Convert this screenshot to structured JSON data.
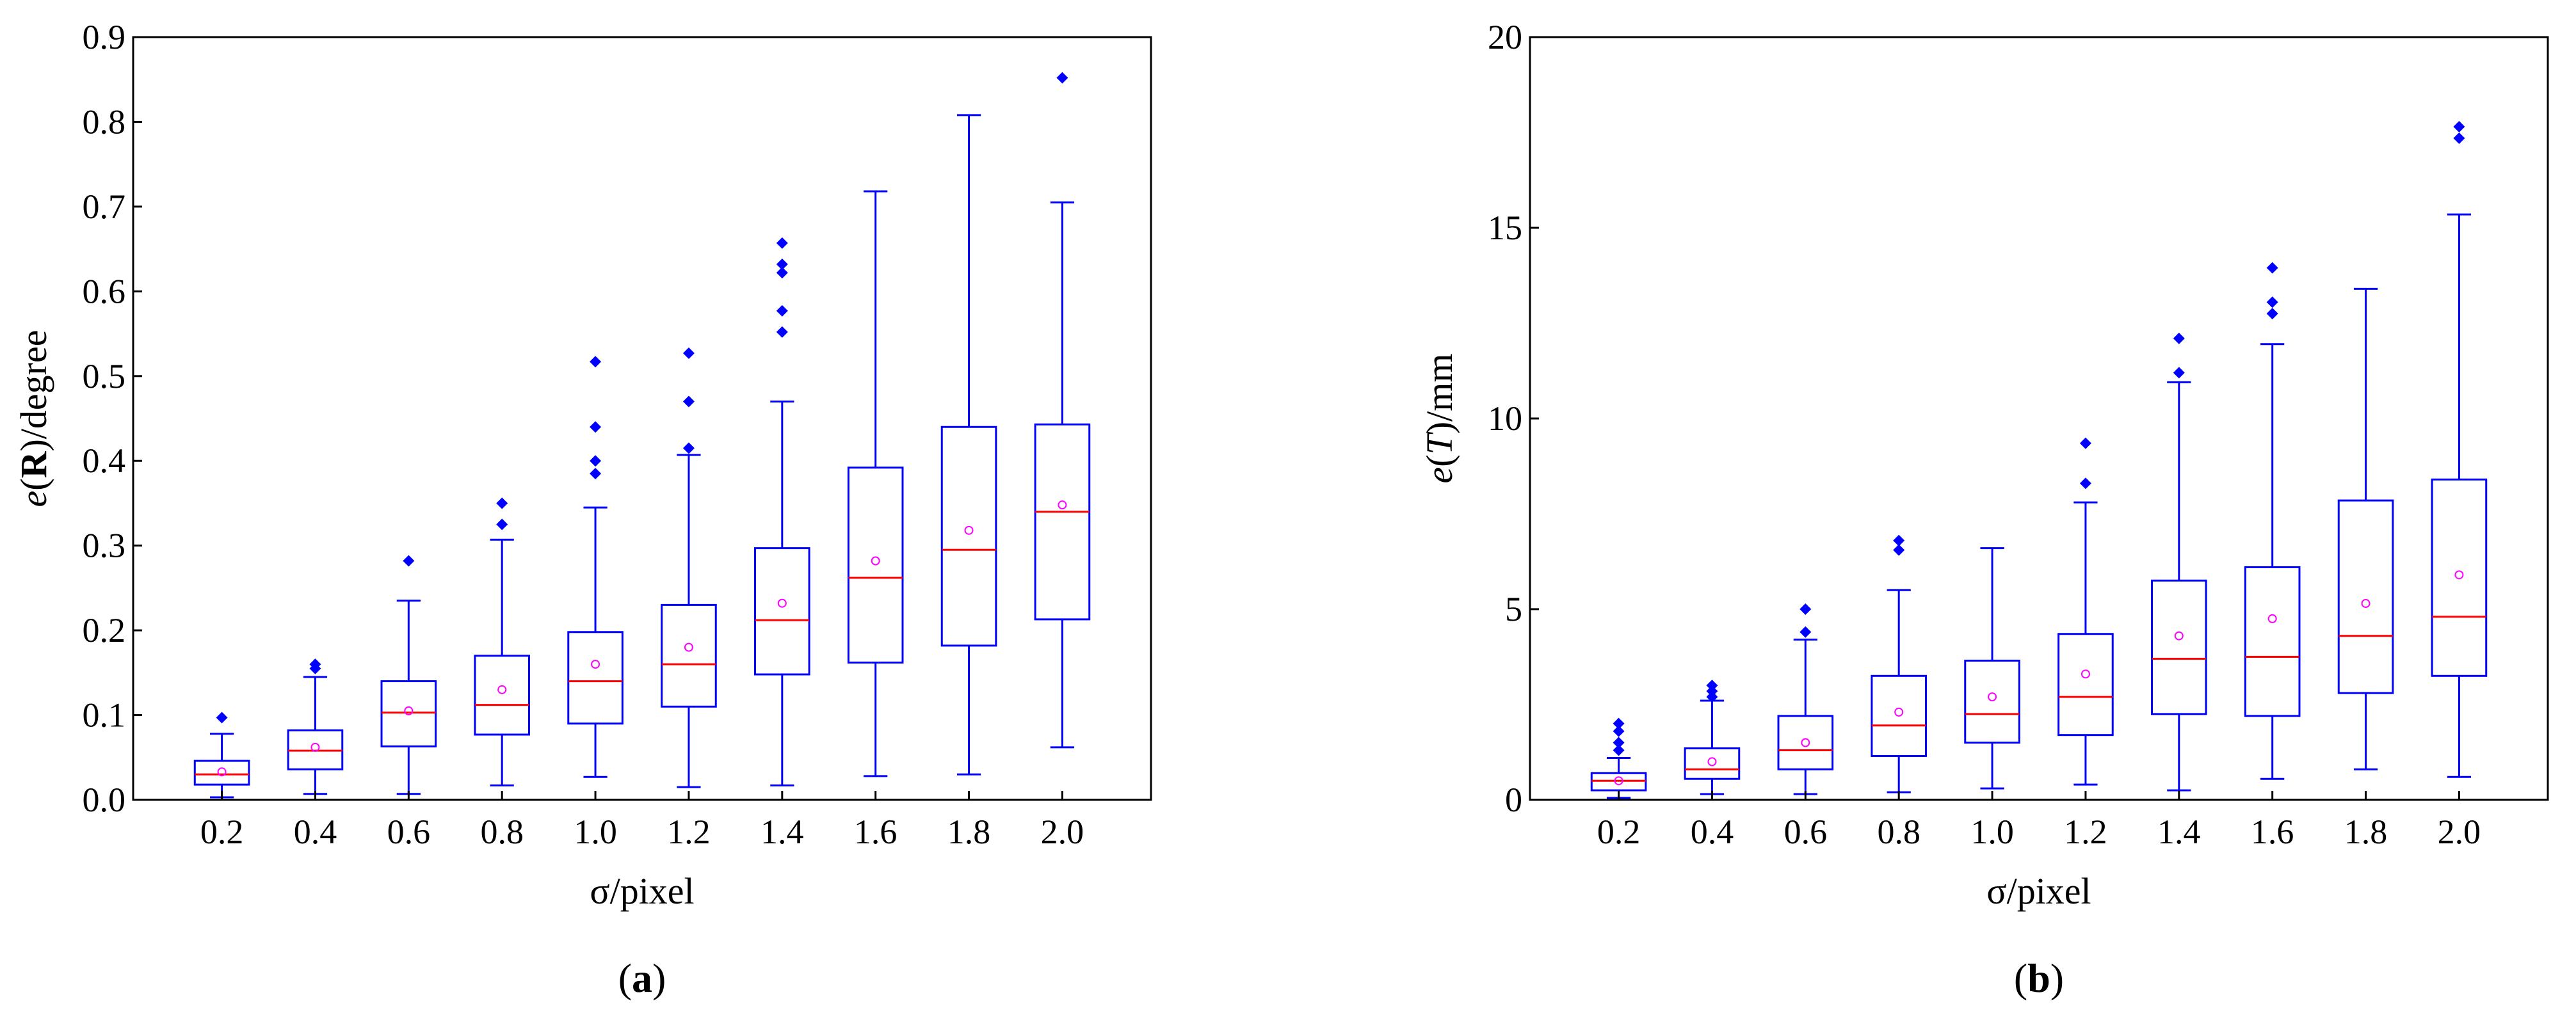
{
  "panels": [
    {
      "id": "a",
      "panel_label": {
        "open": "(",
        "letter": "a",
        "close": ")"
      },
      "ylabel": {
        "prefix": "e",
        "open": "(",
        "symbol": "R",
        "close": ")",
        "unit": "/degree"
      }
    },
    {
      "id": "b",
      "panel_label": {
        "open": "(",
        "letter": "b",
        "close": ")"
      },
      "ylabel": {
        "prefix": "e",
        "open": "(",
        "symbol": "T",
        "close": ")",
        "unit": "/mm"
      }
    }
  ],
  "colors": {
    "box": "#0000ff",
    "median": "#ff0000",
    "mean": "#ff00ff",
    "outlier": "#0000ff",
    "axis": "#000000"
  },
  "chart_data": [
    {
      "type": "box",
      "title": "",
      "xlabel": "σ/pixel",
      "ylabel": "e(R)/degree",
      "categories": [
        "0.2",
        "0.4",
        "0.6",
        "0.8",
        "1.0",
        "1.2",
        "1.4",
        "1.6",
        "1.8",
        "2.0"
      ],
      "ylim": [
        0,
        0.9
      ],
      "yticks": [
        0.0,
        0.1,
        0.2,
        0.3,
        0.4,
        0.5,
        0.6,
        0.7,
        0.8,
        0.9
      ],
      "ytick_labels": [
        "0.0",
        "0.1",
        "0.2",
        "0.3",
        "0.4",
        "0.5",
        "0.6",
        "0.7",
        "0.8",
        "0.9"
      ],
      "boxes": [
        {
          "whisker_low": 0.003,
          "q1": 0.018,
          "median": 0.03,
          "q3": 0.046,
          "whisker_high": 0.078,
          "mean": 0.033,
          "outliers": [
            0.097
          ]
        },
        {
          "whisker_low": 0.007,
          "q1": 0.036,
          "median": 0.058,
          "q3": 0.082,
          "whisker_high": 0.145,
          "mean": 0.062,
          "outliers": [
            0.155,
            0.16
          ]
        },
        {
          "whisker_low": 0.007,
          "q1": 0.063,
          "median": 0.103,
          "q3": 0.14,
          "whisker_high": 0.235,
          "mean": 0.105,
          "outliers": [
            0.282
          ]
        },
        {
          "whisker_low": 0.017,
          "q1": 0.077,
          "median": 0.112,
          "q3": 0.17,
          "whisker_high": 0.307,
          "mean": 0.13,
          "outliers": [
            0.325,
            0.35
          ]
        },
        {
          "whisker_low": 0.027,
          "q1": 0.09,
          "median": 0.14,
          "q3": 0.198,
          "whisker_high": 0.345,
          "mean": 0.16,
          "outliers": [
            0.385,
            0.4,
            0.44,
            0.517
          ]
        },
        {
          "whisker_low": 0.015,
          "q1": 0.11,
          "median": 0.16,
          "q3": 0.23,
          "whisker_high": 0.407,
          "mean": 0.18,
          "outliers": [
            0.415,
            0.47,
            0.527
          ]
        },
        {
          "whisker_low": 0.017,
          "q1": 0.148,
          "median": 0.212,
          "q3": 0.297,
          "whisker_high": 0.47,
          "mean": 0.232,
          "outliers": [
            0.552,
            0.577,
            0.622,
            0.632,
            0.657
          ]
        },
        {
          "whisker_low": 0.028,
          "q1": 0.162,
          "median": 0.262,
          "q3": 0.392,
          "whisker_high": 0.718,
          "mean": 0.282,
          "outliers": []
        },
        {
          "whisker_low": 0.03,
          "q1": 0.182,
          "median": 0.295,
          "q3": 0.44,
          "whisker_high": 0.808,
          "mean": 0.318,
          "outliers": []
        },
        {
          "whisker_low": 0.062,
          "q1": 0.213,
          "median": 0.34,
          "q3": 0.443,
          "whisker_high": 0.705,
          "mean": 0.348,
          "outliers": [
            0.852
          ]
        }
      ]
    },
    {
      "type": "box",
      "title": "",
      "xlabel": "σ/pixel",
      "ylabel": "e(T)/mm",
      "categories": [
        "0.2",
        "0.4",
        "0.6",
        "0.8",
        "1.0",
        "1.2",
        "1.4",
        "1.6",
        "1.8",
        "2.0"
      ],
      "ylim": [
        0,
        20
      ],
      "yticks": [
        0,
        5,
        10,
        15,
        20
      ],
      "ytick_labels": [
        "0",
        "5",
        "10",
        "15",
        "20"
      ],
      "boxes": [
        {
          "whisker_low": 0.05,
          "q1": 0.25,
          "median": 0.5,
          "q3": 0.7,
          "whisker_high": 1.1,
          "mean": 0.5,
          "outliers": [
            1.3,
            1.5,
            1.8,
            2.0
          ]
        },
        {
          "whisker_low": 0.15,
          "q1": 0.55,
          "median": 0.8,
          "q3": 1.35,
          "whisker_high": 2.6,
          "mean": 1.0,
          "outliers": [
            2.7,
            2.85,
            3.0
          ]
        },
        {
          "whisker_low": 0.15,
          "q1": 0.8,
          "median": 1.3,
          "q3": 2.2,
          "whisker_high": 4.2,
          "mean": 1.5,
          "outliers": [
            4.4,
            5.0
          ]
        },
        {
          "whisker_low": 0.2,
          "q1": 1.15,
          "median": 1.95,
          "q3": 3.25,
          "whisker_high": 5.5,
          "mean": 2.3,
          "outliers": [
            6.55,
            6.8
          ]
        },
        {
          "whisker_low": 0.3,
          "q1": 1.5,
          "median": 2.25,
          "q3": 3.65,
          "whisker_high": 6.6,
          "mean": 2.7,
          "outliers": []
        },
        {
          "whisker_low": 0.4,
          "q1": 1.7,
          "median": 2.7,
          "q3": 4.35,
          "whisker_high": 7.8,
          "mean": 3.3,
          "outliers": [
            8.3,
            9.35
          ]
        },
        {
          "whisker_low": 0.25,
          "q1": 2.25,
          "median": 3.7,
          "q3": 5.75,
          "whisker_high": 10.95,
          "mean": 4.3,
          "outliers": [
            11.2,
            12.1
          ]
        },
        {
          "whisker_low": 0.55,
          "q1": 2.2,
          "median": 3.75,
          "q3": 6.1,
          "whisker_high": 11.95,
          "mean": 4.75,
          "outliers": [
            12.75,
            13.05,
            13.95
          ]
        },
        {
          "whisker_low": 0.8,
          "q1": 2.8,
          "median": 4.3,
          "q3": 7.85,
          "whisker_high": 13.4,
          "mean": 5.15,
          "outliers": []
        },
        {
          "whisker_low": 0.6,
          "q1": 3.25,
          "median": 4.8,
          "q3": 8.4,
          "whisker_high": 15.35,
          "mean": 5.9,
          "outliers": [
            17.35,
            17.65
          ]
        }
      ]
    }
  ]
}
